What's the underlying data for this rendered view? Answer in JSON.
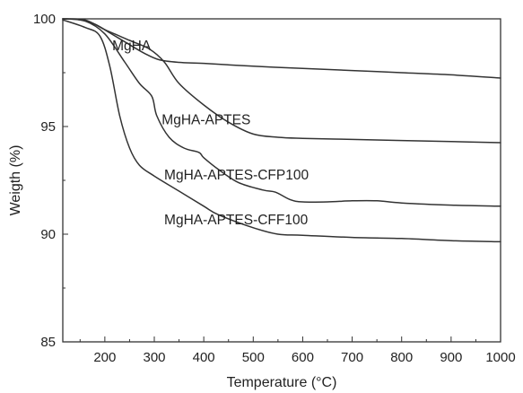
{
  "chart_data": {
    "type": "line",
    "xlabel": "Temperature (°C)",
    "ylabel": "Weigth (%)",
    "xlim": [
      115,
      1000
    ],
    "ylim": [
      85,
      100
    ],
    "xticks": [
      200,
      300,
      400,
      500,
      600,
      700,
      800,
      900,
      1000
    ],
    "yticks": [
      85,
      90,
      95,
      100
    ],
    "tick_labels_x": [
      "200",
      "300",
      "400",
      "500",
      "600",
      "700",
      "800",
      "900",
      "1000"
    ],
    "tick_labels_y": [
      "85",
      "90",
      "95",
      "100"
    ],
    "grid": false,
    "legend": "none",
    "line_color": "#333333",
    "series": [
      {
        "name": "MgHA",
        "label_pos": [
          215,
          98.55
        ],
        "points": [
          [
            115,
            100
          ],
          [
            150,
            99.95
          ],
          [
            180,
            99.75
          ],
          [
            210,
            99.35
          ],
          [
            250,
            98.8
          ],
          [
            280,
            98.4
          ],
          [
            310,
            98.1
          ],
          [
            350,
            97.98
          ],
          [
            400,
            97.93
          ],
          [
            500,
            97.8
          ],
          [
            600,
            97.7
          ],
          [
            700,
            97.6
          ],
          [
            800,
            97.5
          ],
          [
            900,
            97.4
          ],
          [
            1000,
            97.25
          ]
        ]
      },
      {
        "name": "MgHA-APTES",
        "label_pos": [
          315,
          95.1
        ],
        "points": [
          [
            115,
            100
          ],
          [
            160,
            99.95
          ],
          [
            200,
            99.5
          ],
          [
            250,
            99.0
          ],
          [
            290,
            98.6
          ],
          [
            320,
            98.0
          ],
          [
            350,
            97.0
          ],
          [
            400,
            96.0
          ],
          [
            450,
            95.2
          ],
          [
            500,
            94.65
          ],
          [
            550,
            94.5
          ],
          [
            600,
            94.45
          ],
          [
            700,
            94.4
          ],
          [
            800,
            94.35
          ],
          [
            900,
            94.3
          ],
          [
            1000,
            94.25
          ]
        ]
      },
      {
        "name": "MgHA-APTES-CFP100",
        "label_pos": [
          320,
          92.55
        ],
        "points": [
          [
            115,
            100
          ],
          [
            160,
            99.9
          ],
          [
            200,
            99.3
          ],
          [
            240,
            98.0
          ],
          [
            270,
            97.0
          ],
          [
            295,
            96.4
          ],
          [
            305,
            95.5
          ],
          [
            330,
            94.5
          ],
          [
            360,
            94.0
          ],
          [
            390,
            93.8
          ],
          [
            400,
            93.55
          ],
          [
            430,
            93.0
          ],
          [
            470,
            92.4
          ],
          [
            520,
            92.05
          ],
          [
            545,
            91.95
          ],
          [
            575,
            91.6
          ],
          [
            600,
            91.5
          ],
          [
            650,
            91.5
          ],
          [
            700,
            91.55
          ],
          [
            750,
            91.55
          ],
          [
            800,
            91.45
          ],
          [
            900,
            91.35
          ],
          [
            1000,
            91.3
          ]
        ]
      },
      {
        "name": "MgHA-APTES-CFF100",
        "label_pos": [
          320,
          90.45
        ],
        "points": [
          [
            115,
            99.95
          ],
          [
            160,
            99.6
          ],
          [
            190,
            99.2
          ],
          [
            210,
            97.8
          ],
          [
            230,
            95.5
          ],
          [
            250,
            94.0
          ],
          [
            270,
            93.2
          ],
          [
            300,
            92.7
          ],
          [
            350,
            92.0
          ],
          [
            400,
            91.3
          ],
          [
            430,
            90.9
          ],
          [
            500,
            90.3
          ],
          [
            550,
            90.0
          ],
          [
            600,
            89.95
          ],
          [
            700,
            89.85
          ],
          [
            800,
            89.8
          ],
          [
            900,
            89.7
          ],
          [
            1000,
            89.65
          ]
        ]
      }
    ]
  }
}
